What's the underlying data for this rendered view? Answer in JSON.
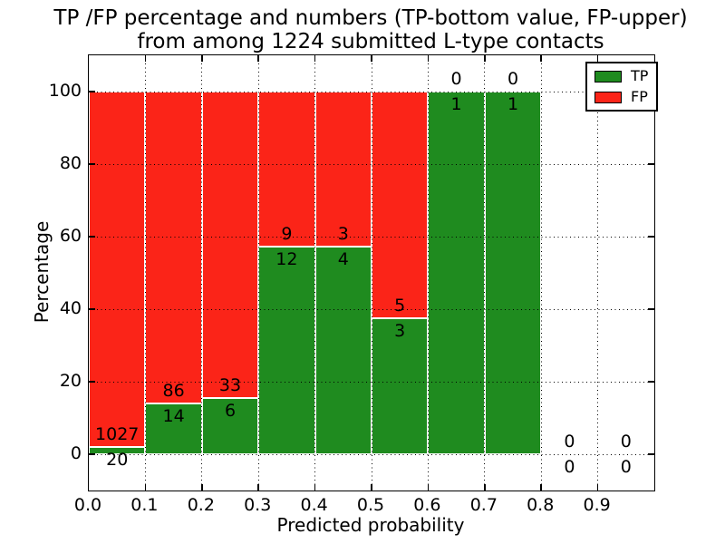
{
  "title": {
    "line1": "TP /FP percentage and numbers (TP-bottom value, FP-upper)",
    "line2": "from among 1224 submitted L-type contacts"
  },
  "colors": {
    "tp": "#1f8b1f",
    "fp": "#fb2418",
    "bar_edge": "#ffffff",
    "grid": "#000000",
    "background": "#ffffff"
  },
  "chart_data": {
    "type": "bar",
    "stacked": true,
    "title": [
      "TP /FP percentage and numbers (TP-bottom value, FP-upper)",
      "from among 1224 submitted L-type contacts"
    ],
    "xlabel": "Predicted probability",
    "ylabel": "Percentage",
    "xlim": [
      0.0,
      1.0
    ],
    "ylim": [
      -10,
      110
    ],
    "x_tick_labels": [
      "0.0",
      "0.1",
      "0.2",
      "0.3",
      "0.4",
      "0.5",
      "0.6",
      "0.7",
      "0.8",
      "0.9"
    ],
    "y_tick_values": [
      0,
      20,
      40,
      60,
      80,
      100
    ],
    "grid": true,
    "total_contacts": 1224,
    "legend": {
      "position": "upper right",
      "entries": [
        {
          "label": "TP",
          "color": "#1f8b1f"
        },
        {
          "label": "FP",
          "color": "#fb2418"
        }
      ]
    },
    "bins": [
      {
        "range": [
          0.0,
          0.1
        ],
        "tp_count": 20,
        "fp_count": 1027,
        "tp_pct": 1.91,
        "fp_pct": 98.09
      },
      {
        "range": [
          0.1,
          0.2
        ],
        "tp_count": 14,
        "fp_count": 86,
        "tp_pct": 14.0,
        "fp_pct": 86.0
      },
      {
        "range": [
          0.2,
          0.3
        ],
        "tp_count": 6,
        "fp_count": 33,
        "tp_pct": 15.38,
        "fp_pct": 84.62
      },
      {
        "range": [
          0.3,
          0.4
        ],
        "tp_count": 12,
        "fp_count": 9,
        "tp_pct": 57.14,
        "fp_pct": 42.86
      },
      {
        "range": [
          0.4,
          0.5
        ],
        "tp_count": 4,
        "fp_count": 3,
        "tp_pct": 57.14,
        "fp_pct": 42.86
      },
      {
        "range": [
          0.5,
          0.6
        ],
        "tp_count": 3,
        "fp_count": 5,
        "tp_pct": 37.5,
        "fp_pct": 62.5
      },
      {
        "range": [
          0.6,
          0.7
        ],
        "tp_count": 1,
        "fp_count": 0,
        "tp_pct": 100,
        "fp_pct": 0
      },
      {
        "range": [
          0.7,
          0.8
        ],
        "tp_count": 1,
        "fp_count": 0,
        "tp_pct": 100,
        "fp_pct": 0
      },
      {
        "range": [
          0.8,
          0.9
        ],
        "tp_count": 0,
        "fp_count": 0,
        "tp_pct": 0,
        "fp_pct": 0
      },
      {
        "range": [
          0.9,
          1.0
        ],
        "tp_count": 0,
        "fp_count": 0,
        "tp_pct": 0,
        "fp_pct": 0
      }
    ]
  }
}
